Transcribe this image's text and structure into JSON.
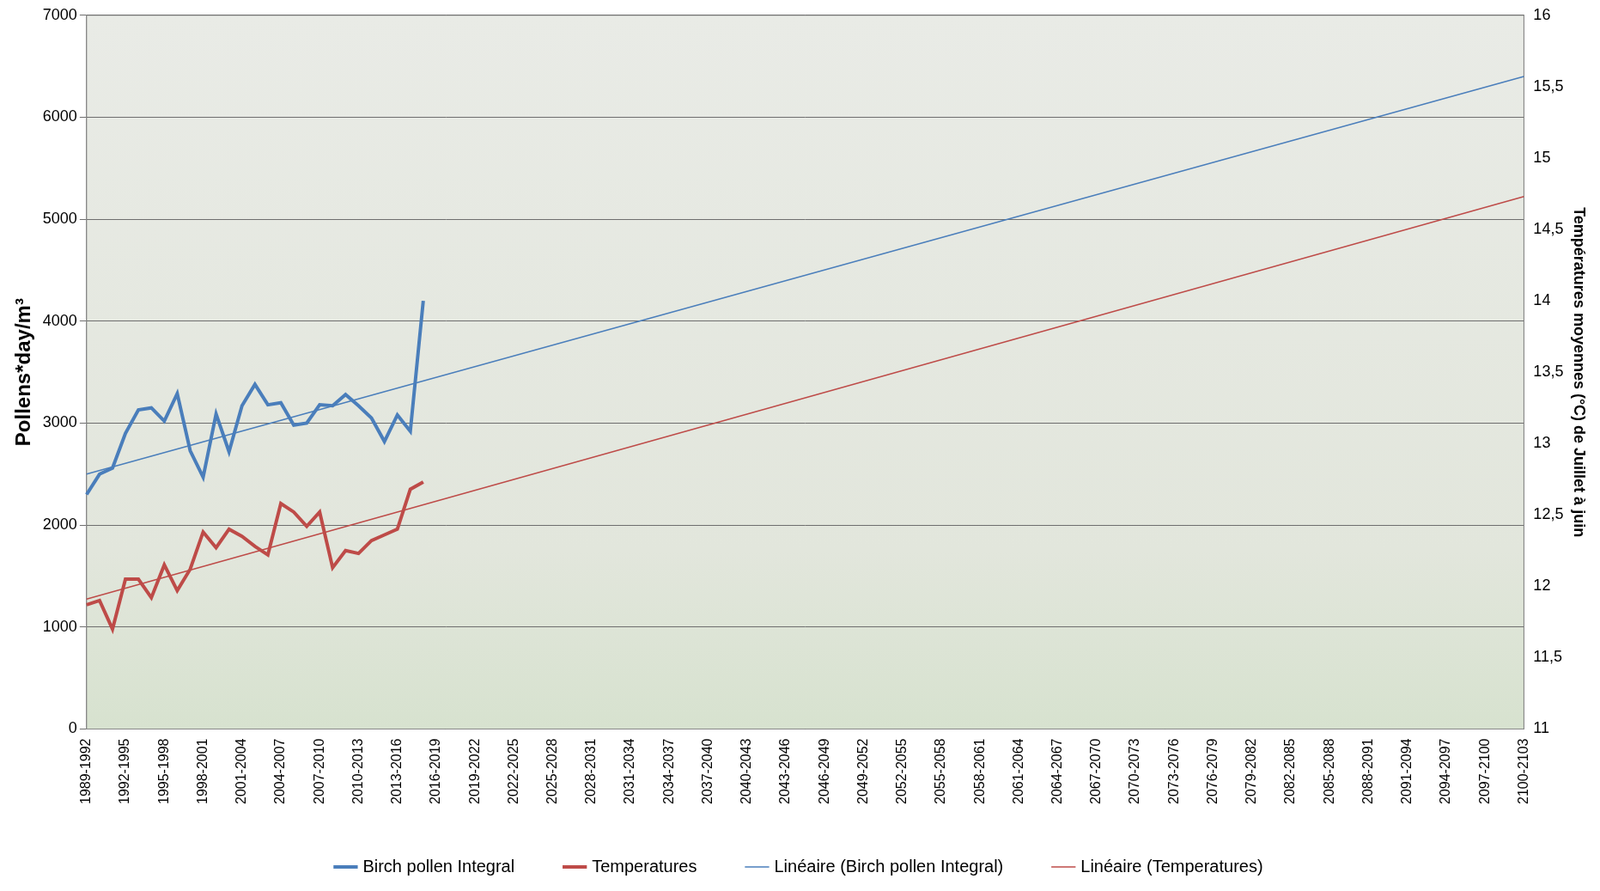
{
  "chart_data": {
    "type": "line",
    "y_label": "Pollens*day/m³",
    "y2_label": "Températures moyennes (°C) de Juillet à juin",
    "categories": [
      "1989-1992",
      null,
      null,
      "1992-1995",
      null,
      null,
      "1995-1998",
      null,
      null,
      "1998-2001",
      null,
      null,
      "2001-2004",
      null,
      null,
      "2004-2007",
      null,
      null,
      "2007-2010",
      null,
      null,
      "2010-2013",
      null,
      null,
      "2013-2016",
      null,
      null,
      "2016-2019",
      null,
      null,
      "2019-2022",
      null,
      null,
      "2022-2025",
      null,
      null,
      "2025-2028",
      null,
      null,
      "2028-2031",
      null,
      null,
      "2031-2034",
      null,
      null,
      "2034-2037",
      null,
      null,
      "2037-2040",
      null,
      null,
      "2040-2043",
      null,
      null,
      "2043-2046",
      null,
      null,
      "2046-2049",
      null,
      null,
      "2049-2052",
      null,
      null,
      "2052-2055",
      null,
      null,
      "2055-2058",
      null,
      null,
      "2058-2061",
      null,
      null,
      "2061-2064",
      null,
      null,
      "2064-2067",
      null,
      null,
      "2067-2070",
      null,
      null,
      "2070-2073",
      null,
      null,
      "2073-2076",
      null,
      null,
      "2076-2079",
      null,
      null,
      "2079-2082",
      null,
      null,
      "2082-2085",
      null,
      null,
      "2085-2088",
      null,
      null,
      "2088-2091",
      null,
      null,
      "2091-2094",
      null,
      null,
      "2094-2097",
      null,
      null,
      "2097-2100",
      null,
      null,
      "2100-2103"
    ],
    "series": [
      {
        "name": "Birch pollen Integral",
        "color": "#4a7ebb",
        "line_style": "solid",
        "axis": "y",
        "values": [
          2300,
          2500,
          2560,
          2900,
          3130,
          3150,
          3020,
          3290,
          2730,
          2470,
          3090,
          2720,
          3170,
          3380,
          3180,
          3200,
          2980,
          3000,
          3180,
          3170,
          3280,
          3170,
          3050,
          2820,
          3080,
          2920,
          4200,
          null,
          null,
          null,
          null,
          null,
          null,
          null,
          null,
          null,
          null,
          null,
          null,
          null,
          null,
          null,
          null,
          null,
          null,
          null,
          null,
          null,
          null,
          null,
          null,
          null,
          null,
          null,
          null,
          null,
          null,
          null,
          null,
          null,
          null,
          null,
          null,
          null,
          null,
          null,
          null,
          null,
          null,
          null,
          null,
          null,
          null,
          null,
          null,
          null,
          null,
          null,
          null,
          null,
          null,
          null,
          null,
          null,
          null,
          null,
          null,
          null,
          null,
          null,
          null,
          null,
          null,
          null,
          null,
          null,
          null,
          null,
          null,
          null,
          null,
          null,
          null,
          null,
          null,
          null,
          null,
          null,
          null,
          null,
          null,
          null
        ]
      },
      {
        "name": "Temperatures",
        "color": "#be4b48",
        "line_style": "solid",
        "axis": "y2",
        "values": [
          11.87,
          11.9,
          11.7,
          12.05,
          12.05,
          11.92,
          12.15,
          11.97,
          12.12,
          12.38,
          12.27,
          12.4,
          12.35,
          12.28,
          12.22,
          12.58,
          12.52,
          12.42,
          12.52,
          12.13,
          12.25,
          12.23,
          12.32,
          12.36,
          12.4,
          12.68,
          12.73,
          null,
          null,
          null,
          null,
          null,
          null,
          null,
          null,
          null,
          null,
          null,
          null,
          null,
          null,
          null,
          null,
          null,
          null,
          null,
          null,
          null,
          null,
          null,
          null,
          null,
          null,
          null,
          null,
          null,
          null,
          null,
          null,
          null,
          null,
          null,
          null,
          null,
          null,
          null,
          null,
          null,
          null,
          null,
          null,
          null,
          null,
          null,
          null,
          null,
          null,
          null,
          null,
          null,
          null,
          null,
          null,
          null,
          null,
          null,
          null,
          null,
          null,
          null,
          null,
          null,
          null,
          null,
          null,
          null,
          null,
          null,
          null,
          null,
          null,
          null,
          null,
          null,
          null,
          null,
          null,
          null,
          null,
          null,
          null,
          null
        ]
      },
      {
        "name": "Linéaire (Birch pollen Integral)",
        "color": "#4a7ebb",
        "line_style": "thin",
        "axis": "y",
        "values": [
          2500,
          null,
          null,
          null,
          null,
          null,
          null,
          null,
          null,
          null,
          null,
          null,
          null,
          null,
          null,
          null,
          null,
          null,
          null,
          null,
          null,
          null,
          null,
          null,
          null,
          null,
          null,
          null,
          null,
          null,
          null,
          null,
          null,
          null,
          null,
          null,
          null,
          null,
          null,
          null,
          null,
          null,
          null,
          null,
          null,
          null,
          null,
          null,
          null,
          null,
          null,
          null,
          null,
          null,
          null,
          null,
          null,
          null,
          null,
          null,
          null,
          null,
          null,
          null,
          null,
          null,
          null,
          null,
          null,
          null,
          null,
          null,
          null,
          null,
          null,
          null,
          null,
          null,
          null,
          null,
          null,
          null,
          null,
          null,
          null,
          null,
          null,
          null,
          null,
          null,
          null,
          null,
          null,
          null,
          null,
          null,
          null,
          null,
          null,
          null,
          null,
          null,
          null,
          null,
          null,
          null,
          null,
          null,
          null,
          null,
          null,
          6400
        ]
      },
      {
        "name": "Linéaire (Temperatures)",
        "color": "#be4b48",
        "line_style": "thin",
        "axis": "y2",
        "values": [
          11.91,
          null,
          null,
          null,
          null,
          null,
          null,
          null,
          null,
          null,
          null,
          null,
          null,
          null,
          null,
          null,
          null,
          null,
          null,
          null,
          null,
          null,
          null,
          null,
          null,
          null,
          null,
          null,
          null,
          null,
          null,
          null,
          null,
          null,
          null,
          null,
          null,
          null,
          null,
          null,
          null,
          null,
          null,
          null,
          null,
          null,
          null,
          null,
          null,
          null,
          null,
          null,
          null,
          null,
          null,
          null,
          null,
          null,
          null,
          null,
          null,
          null,
          null,
          null,
          null,
          null,
          null,
          null,
          null,
          null,
          null,
          null,
          null,
          null,
          null,
          null,
          null,
          null,
          null,
          null,
          null,
          null,
          null,
          null,
          null,
          null,
          null,
          null,
          null,
          null,
          null,
          null,
          null,
          null,
          null,
          null,
          null,
          null,
          null,
          null,
          null,
          null,
          null,
          null,
          null,
          null,
          null,
          null,
          null,
          null,
          null,
          14.73
        ]
      }
    ],
    "ylim": [
      0,
      7000
    ],
    "yticks": [
      0,
      1000,
      2000,
      3000,
      4000,
      5000,
      6000,
      7000
    ],
    "y2lim": [
      11,
      16
    ],
    "y2ticks": [
      11,
      {
        "value": 11.5,
        "label": "11,5"
      },
      12,
      {
        "value": 12.5,
        "label": "12,5"
      },
      13,
      {
        "value": 13.5,
        "label": "13,5"
      },
      14,
      {
        "value": 14.5,
        "label": "14,5"
      },
      15,
      {
        "value": 15.5,
        "label": "15,5"
      },
      16
    ],
    "grid": true,
    "legend": "bottom"
  }
}
